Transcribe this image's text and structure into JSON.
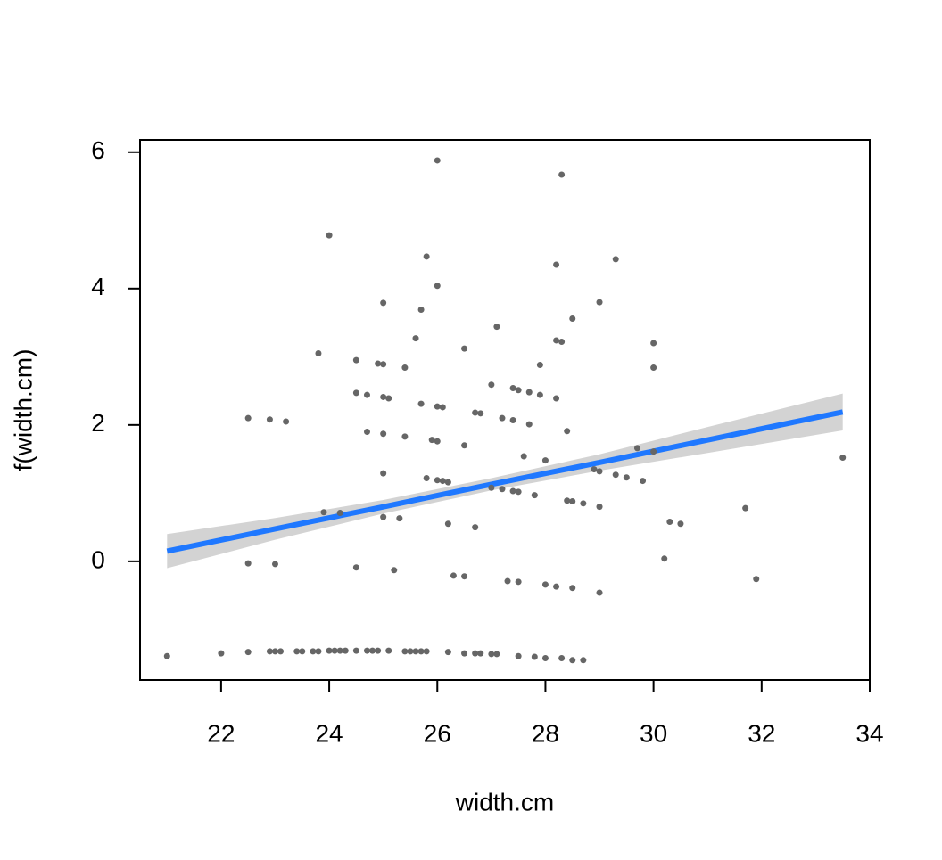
{
  "chart_data": {
    "type": "scatter",
    "xlabel": "width.cm",
    "ylabel": "f(width.cm)",
    "xlim": [
      20.5,
      34
    ],
    "ylim": [
      -1.74,
      6.18
    ],
    "xticks": [
      22,
      24,
      26,
      28,
      30,
      32,
      34
    ],
    "yticks": [
      0,
      2,
      4,
      6
    ],
    "points": {
      "color": "#666666",
      "x": [
        21.0,
        22.0,
        22.5,
        22.9,
        23.0,
        23.1,
        23.4,
        23.5,
        23.7,
        23.8,
        24.0,
        24.1,
        24.2,
        24.3,
        24.5,
        24.7,
        24.8,
        24.9,
        25.1,
        25.4,
        25.5,
        25.6,
        25.7,
        25.8,
        26.2,
        26.5,
        26.7,
        26.8,
        27.0,
        27.1,
        27.5,
        27.8,
        28.0,
        28.3,
        28.5,
        28.7,
        26.0,
        28.3,
        24.0,
        25.8,
        28.2,
        29.3,
        26.0,
        25.0,
        25.7,
        29.0,
        27.1,
        28.5,
        25.6,
        26.5,
        28.2,
        28.3,
        30.0,
        23.8,
        24.5,
        24.9,
        25.0,
        25.4,
        27.9,
        30.0,
        27.0,
        27.4,
        27.5,
        27.7,
        27.9,
        24.5,
        24.7,
        25.0,
        25.1,
        28.2,
        25.7,
        26.0,
        26.1,
        26.7,
        26.8,
        27.2,
        27.4,
        27.7,
        22.5,
        22.9,
        23.2,
        24.7,
        25.0,
        25.4,
        25.9,
        26.0,
        26.5,
        28.4,
        29.7,
        30.0,
        27.6,
        28.0,
        33.5,
        25.0,
        25.8,
        26.0,
        26.1,
        26.2,
        28.9,
        29.0,
        29.3,
        29.5,
        29.8,
        27.0,
        27.2,
        27.4,
        27.5,
        27.8,
        28.4,
        28.5,
        28.7,
        29.0,
        31.7,
        23.9,
        24.2,
        25.0,
        25.3,
        30.3,
        30.5,
        26.2,
        26.7,
        30.2,
        22.5,
        23.0,
        24.5,
        25.2,
        26.3,
        26.5,
        27.3,
        27.5,
        28.0,
        28.2,
        28.5,
        29.0,
        31.9
      ],
      "y": [
        -1.39,
        -1.35,
        -1.33,
        -1.32,
        -1.32,
        -1.32,
        -1.32,
        -1.32,
        -1.32,
        -1.32,
        -1.31,
        -1.31,
        -1.31,
        -1.31,
        -1.31,
        -1.31,
        -1.31,
        -1.31,
        -1.31,
        -1.32,
        -1.32,
        -1.32,
        -1.32,
        -1.32,
        -1.33,
        -1.35,
        -1.35,
        -1.35,
        -1.36,
        -1.36,
        -1.39,
        -1.4,
        -1.42,
        -1.42,
        -1.45,
        -1.45,
        5.88,
        5.67,
        4.78,
        4.47,
        4.35,
        4.43,
        4.04,
        3.79,
        3.69,
        3.8,
        3.44,
        3.56,
        3.27,
        3.12,
        3.24,
        3.22,
        3.2,
        3.05,
        2.95,
        2.9,
        2.89,
        2.84,
        2.88,
        2.84,
        2.59,
        2.54,
        2.51,
        2.48,
        2.44,
        2.47,
        2.44,
        2.41,
        2.39,
        2.39,
        2.31,
        2.27,
        2.26,
        2.18,
        2.17,
        2.1,
        2.07,
        2.01,
        2.1,
        2.08,
        2.05,
        1.9,
        1.87,
        1.83,
        1.78,
        1.76,
        1.7,
        1.91,
        1.66,
        1.61,
        1.54,
        1.48,
        1.52,
        1.29,
        1.22,
        1.19,
        1.18,
        1.16,
        1.35,
        1.32,
        1.27,
        1.23,
        1.18,
        1.08,
        1.06,
        1.03,
        1.02,
        0.97,
        0.89,
        0.88,
        0.85,
        0.8,
        0.78,
        0.72,
        0.71,
        0.65,
        0.63,
        0.58,
        0.55,
        0.55,
        0.5,
        0.04,
        -0.03,
        -0.04,
        -0.09,
        -0.13,
        -0.21,
        -0.22,
        -0.29,
        -0.3,
        -0.34,
        -0.37,
        -0.39,
        -0.46,
        -0.26
      ]
    },
    "fit": {
      "color": "#1f78ff",
      "band_color": "#d3d3d3",
      "x": [
        21,
        23,
        25,
        27,
        29,
        31,
        33.5
      ],
      "y": [
        0.15,
        0.476,
        0.8,
        1.13,
        1.45,
        1.78,
        2.19
      ],
      "lower": [
        -0.1,
        0.316,
        0.7,
        1.04,
        1.33,
        1.59,
        1.92
      ],
      "upper": [
        0.4,
        0.636,
        0.9,
        1.22,
        1.57,
        1.97,
        2.46
      ]
    }
  }
}
